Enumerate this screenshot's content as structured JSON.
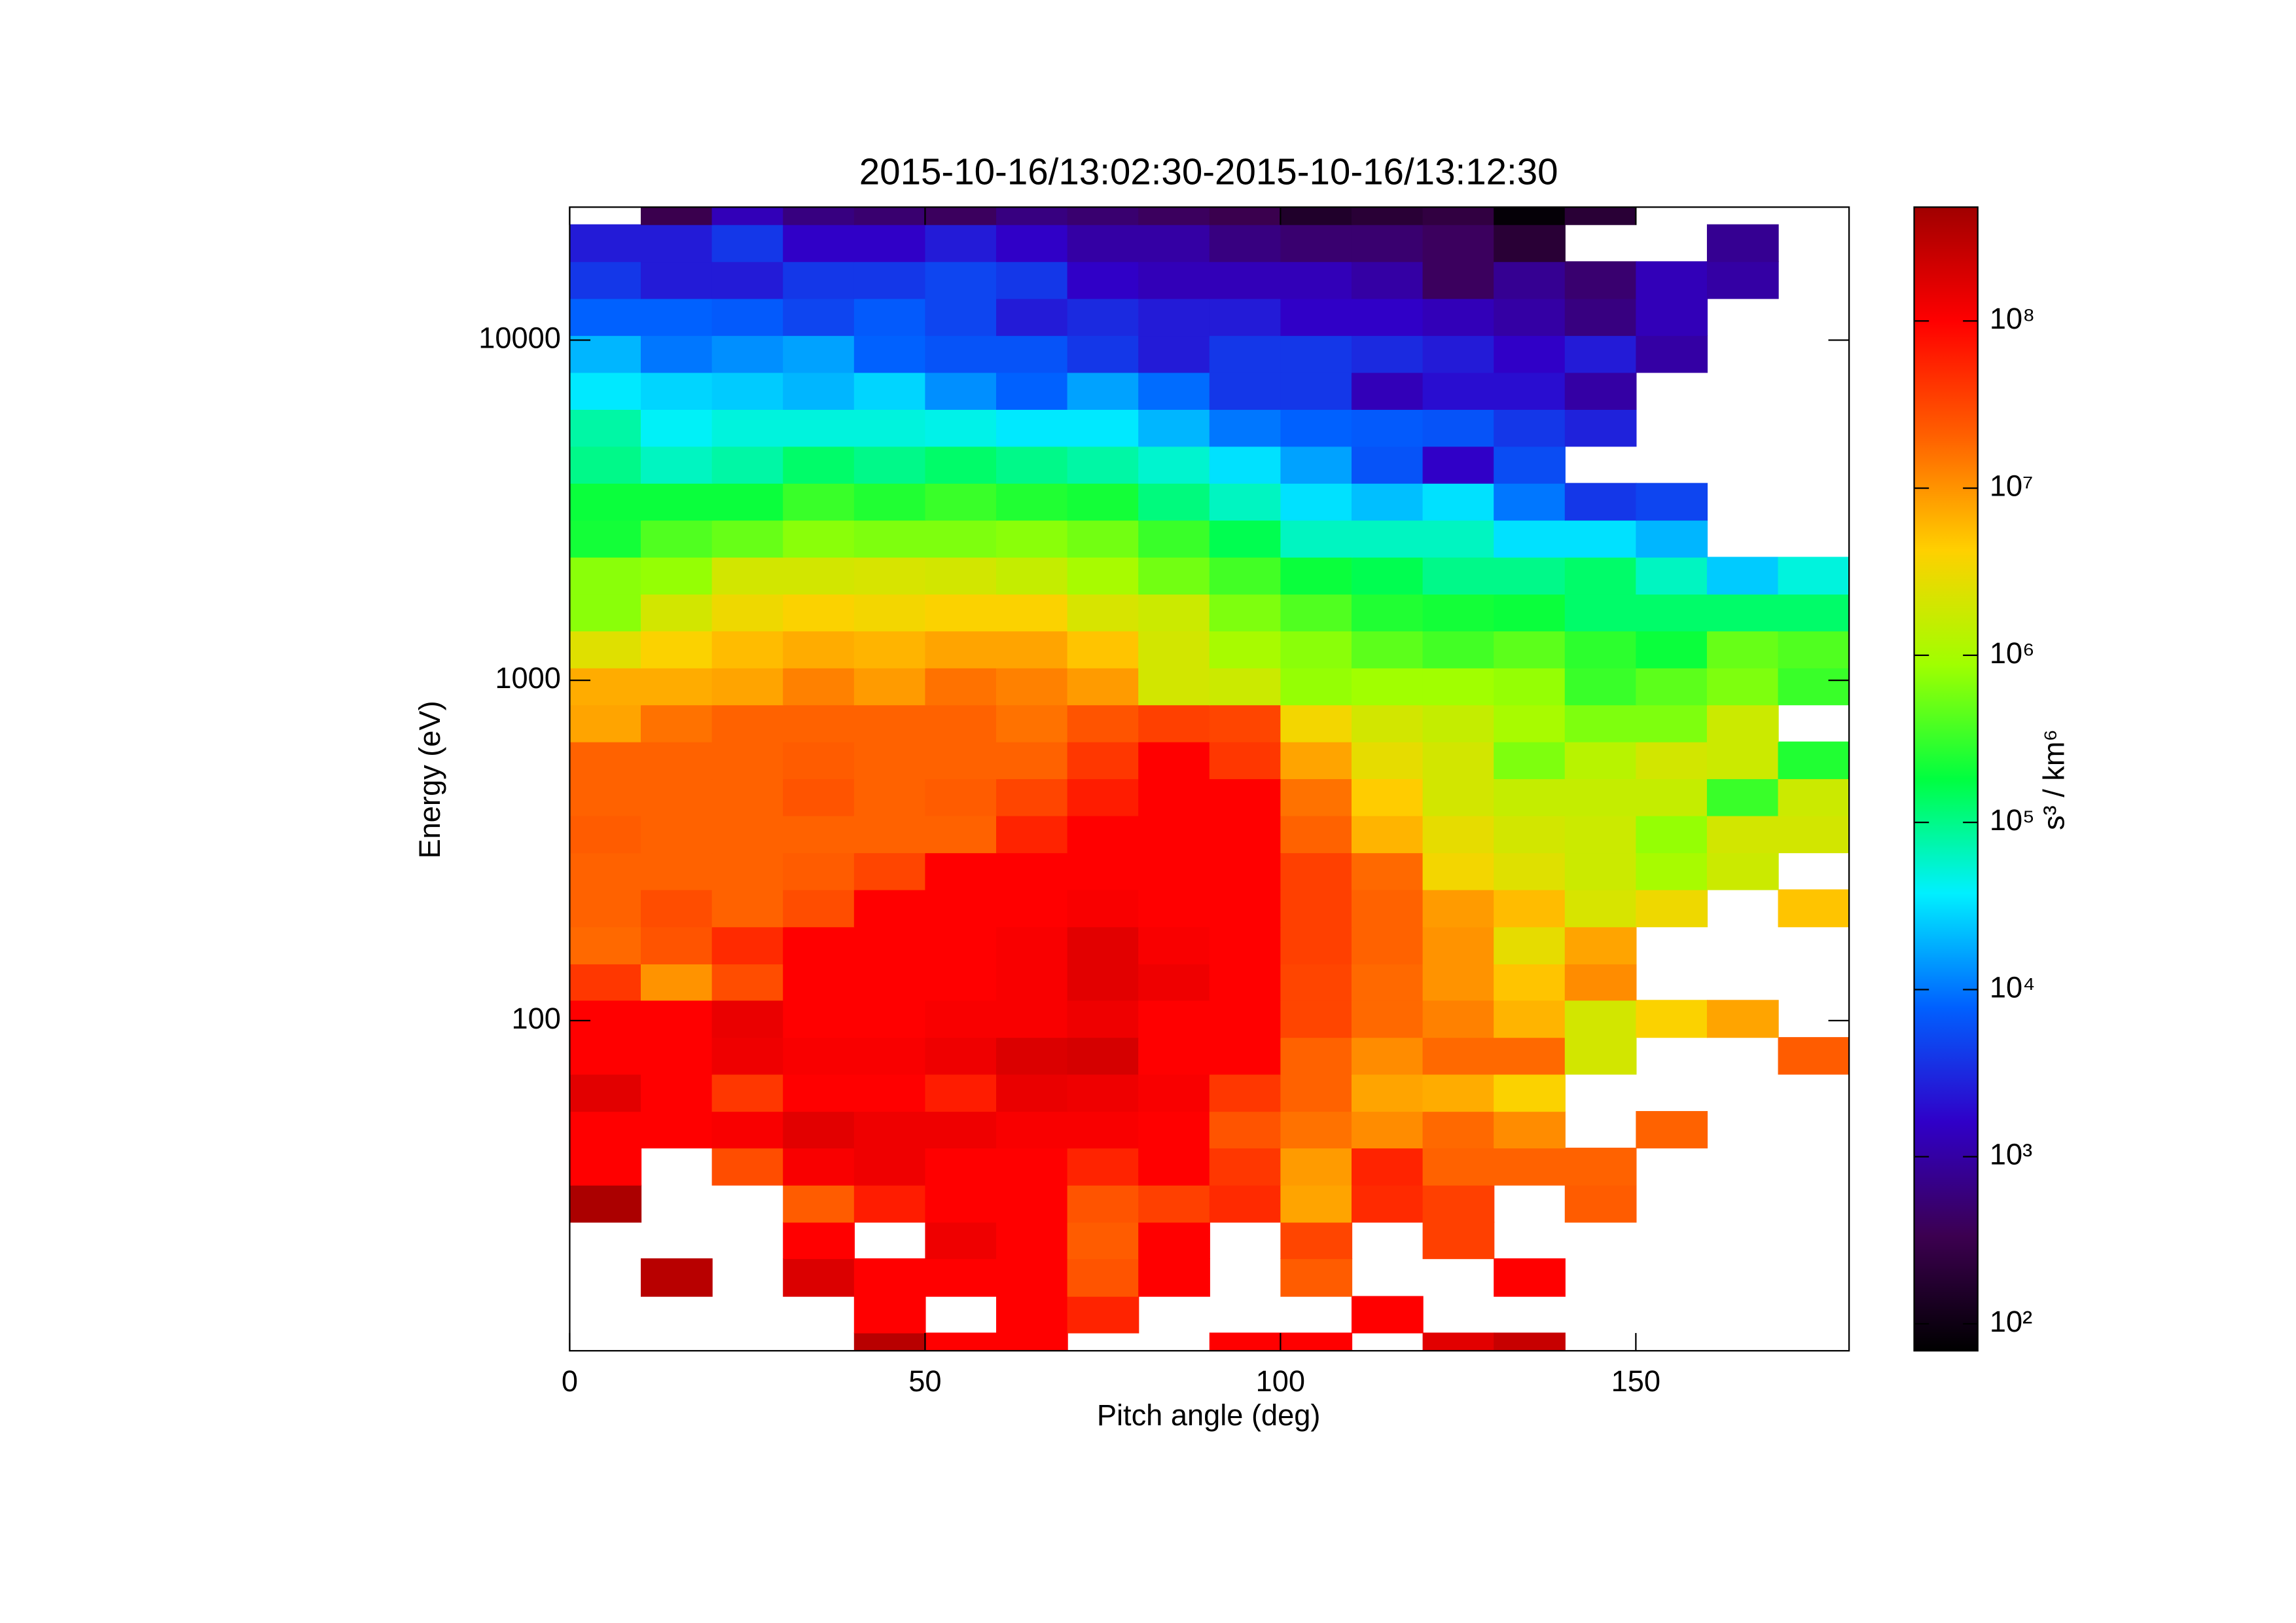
{
  "chart_data": {
    "type": "heatmap",
    "title": "2015-10-16/13:02:30-2015-10-16/13:12:30",
    "x_label": "Pitch angle (deg)",
    "y_label": "Energy (eV)",
    "colorbar_label": "s³ / km⁶",
    "x_bins": [
      0,
      10,
      20,
      30,
      40,
      50,
      60,
      70,
      80,
      90,
      100,
      110,
      120,
      130,
      140,
      150,
      160,
      170,
      180
    ],
    "y_bins": [
      9.4,
      12.1,
      15.5,
      20.0,
      25.6,
      32.9,
      42.3,
      54.2,
      69.7,
      89.4,
      115,
      147,
      189,
      243,
      312,
      401,
      515,
      661,
      849,
      1090,
      1400,
      1796,
      2307,
      2963,
      3804,
      4885,
      6271,
      8053,
      10340,
      13280,
      17050,
      21900,
      28120
    ],
    "xlim": [
      0,
      180
    ],
    "xticks": [
      0,
      50,
      100,
      150
    ],
    "ylim": [
      10.7,
      24600
    ],
    "yticks": [
      100,
      1000,
      10000
    ],
    "y_log": true,
    "zlim": [
      69,
      480000000
    ],
    "z_log": true,
    "zticks": [
      {
        "value": 100,
        "label": "10²"
      },
      {
        "value": 1000,
        "label": "10³"
      },
      {
        "value": 10000,
        "label": "10⁴"
      },
      {
        "value": 100000,
        "label": "10⁵"
      },
      {
        "value": 1000000,
        "label": "10⁶"
      },
      {
        "value": 10000000,
        "label": "10⁷"
      },
      {
        "value": 100000000,
        "label": "10⁸"
      }
    ],
    "colormap": [
      "#000000",
      "#3c0050",
      "#3000c8",
      "#0060ff",
      "#00f0ff",
      "#00ff40",
      "#a0ff00",
      "#ffd000",
      "#ff6000",
      "#ff0000",
      "#a00000"
    ],
    "z": [
      [
        null,
        null,
        null,
        null,
        320000000.0,
        100000000.0,
        100000000.0,
        null,
        null,
        100000000.0,
        100000000.0,
        null,
        160000000.0,
        250000000.0,
        null,
        null,
        null,
        null
      ],
      [
        null,
        null,
        null,
        null,
        100000000.0,
        null,
        100000000.0,
        56000000.0,
        null,
        null,
        null,
        100000000.0,
        null,
        null,
        null,
        null,
        null,
        null
      ],
      [
        null,
        320000000.0,
        null,
        180000000.0,
        100000000.0,
        100000000.0,
        100000000.0,
        25000000.0,
        100000000.0,
        null,
        22000000.0,
        null,
        null,
        100000000.0,
        null,
        null,
        null,
        null
      ],
      [
        null,
        null,
        null,
        100000000.0,
        null,
        130000000.0,
        100000000.0,
        22000000.0,
        100000000.0,
        null,
        32000000.0,
        null,
        35000000.0,
        null,
        null,
        null,
        null,
        null
      ],
      [
        400000000.0,
        null,
        null,
        22000000.0,
        63000000.0,
        100000000.0,
        100000000.0,
        25000000.0,
        35000000.0,
        50000000.0,
        7900000.0,
        50000000.0,
        35000000.0,
        null,
        22000000.0,
        null,
        null,
        null
      ],
      [
        100000000.0,
        null,
        28000000.0,
        110000000.0,
        130000000.0,
        100000000.0,
        100000000.0,
        56000000.0,
        100000000.0,
        40000000.0,
        8900000.0,
        56000000.0,
        20000000.0,
        20000000.0,
        20000000.0,
        null,
        null,
        null
      ],
      [
        100000000.0,
        100000000.0,
        110000000.0,
        160000000.0,
        130000000.0,
        130000000.0,
        110000000.0,
        110000000.0,
        100000000.0,
        25000000.0,
        16000000.0,
        11000000.0,
        18000000.0,
        11000000.0,
        null,
        20000000.0,
        null,
        null
      ],
      [
        160000000.0,
        100000000.0,
        40000000.0,
        100000000.0,
        100000000.0,
        63000000.0,
        140000000.0,
        130000000.0,
        110000000.0,
        40000000.0,
        20000000.0,
        7900000.0,
        7100000.0,
        4000000.0,
        null,
        null,
        null,
        null
      ],
      [
        100000000.0,
        100000000.0,
        130000000.0,
        110000000.0,
        110000000.0,
        130000000.0,
        180000000.0,
        200000000.0,
        100000000.0,
        100000000.0,
        20000000.0,
        11000000.0,
        18000000.0,
        18000000.0,
        2000000.0,
        null,
        null,
        22000000.0
      ],
      [
        100000000.0,
        100000000.0,
        140000000.0,
        100000000.0,
        100000000.0,
        110000000.0,
        110000000.0,
        130000000.0,
        100000000.0,
        100000000.0,
        32000000.0,
        18000000.0,
        13000000.0,
        6300000.0,
        2000000.0,
        4000000.0,
        7900000.0,
        null
      ],
      [
        40000000.0,
        10000000.0,
        28000000.0,
        100000000.0,
        100000000.0,
        100000000.0,
        110000000.0,
        160000000.0,
        130000000.0,
        100000000.0,
        32000000.0,
        18000000.0,
        10000000.0,
        5000000.0,
        11000000.0,
        null,
        null,
        null
      ],
      [
        18000000.0,
        25000000.0,
        50000000.0,
        100000000.0,
        100000000.0,
        100000000.0,
        110000000.0,
        160000000.0,
        110000000.0,
        100000000.0,
        35000000.0,
        20000000.0,
        10000000.0,
        2800000.0,
        7900000.0,
        null,
        null,
        null
      ],
      [
        20000000.0,
        28000000.0,
        20000000.0,
        28000000.0,
        100000000.0,
        100000000.0,
        100000000.0,
        110000000.0,
        100000000.0,
        100000000.0,
        35000000.0,
        20000000.0,
        8900000.0,
        5600000.0,
        2200000.0,
        3200000.0,
        null,
        5000000.0
      ],
      [
        20000000.0,
        20000000.0,
        20000000.0,
        22000000.0,
        32000000.0,
        100000000.0,
        100000000.0,
        100000000.0,
        100000000.0,
        100000000.0,
        35000000.0,
        18000000.0,
        3500000.0,
        2500000.0,
        1800000.0,
        1000000.0,
        1800000.0,
        null
      ],
      [
        22000000.0,
        20000000.0,
        20000000.0,
        20000000.0,
        20000000.0,
        20000000.0,
        56000000.0,
        100000000.0,
        100000000.0,
        100000000.0,
        20000000.0,
        6300000.0,
        2800000.0,
        2000000.0,
        1800000.0,
        790000.0,
        2000000.0,
        2000000.0
      ],
      [
        20000000.0,
        20000000.0,
        20000000.0,
        25000000.0,
        20000000.0,
        22000000.0,
        32000000.0,
        63000000.0,
        100000000.0,
        100000000.0,
        16000000.0,
        4500000.0,
        2000000.0,
        1600000.0,
        1600000.0,
        1600000.0,
        320000.0,
        1800000.0
      ],
      [
        20000000.0,
        20000000.0,
        20000000.0,
        22000000.0,
        20000000.0,
        20000000.0,
        20000000.0,
        40000000.0,
        100000000.0,
        40000000.0,
        7900000.0,
        2800000.0,
        2000000.0,
        630000.0,
        1300000.0,
        2000000.0,
        1800000.0,
        250000.0
      ],
      [
        7900000.0,
        16000000.0,
        20000000.0,
        20000000.0,
        20000000.0,
        20000000.0,
        16000000.0,
        25000000.0,
        35000000.0,
        32000000.0,
        3500000.0,
        2000000.0,
        1600000.0,
        1000000.0,
        630000.0,
        630000.0,
        1800000.0,
        null
      ],
      [
        7100000.0,
        7100000.0,
        7900000.0,
        13000000.0,
        8900000.0,
        16000000.0,
        13000000.0,
        8900000.0,
        2000000.0,
        1800000.0,
        790000.0,
        890000.0,
        890000.0,
        790000.0,
        320000.0,
        450000.0,
        630000.0,
        320000.0
      ],
      [
        2500000.0,
        4000000.0,
        5600000.0,
        7100000.0,
        6300000.0,
        7900000.0,
        7900000.0,
        5000000.0,
        2000000.0,
        1000000.0,
        710000.0,
        450000.0,
        350000.0,
        450000.0,
        280000.0,
        200000.0,
        500000.0,
        400000.0
      ],
      [
        710000.0,
        2000000.0,
        3200000.0,
        4000000.0,
        3500000.0,
        4000000.0,
        4000000.0,
        2200000.0,
        1800000.0,
        630000.0,
        400000.0,
        250000.0,
        220000.0,
        200000.0,
        130000.0,
        130000.0,
        130000.0,
        130000.0
      ],
      [
        710000.0,
        790000.0,
        2000000.0,
        2000000.0,
        2200000.0,
        2000000.0,
        1600000.0,
        1000000.0,
        560000.0,
        350000.0,
        200000.0,
        160000.0,
        100000.0,
        100000.0,
        130000.0,
        63000.0,
        25000.0,
        50000.0
      ],
      [
        220000.0,
        400000.0,
        500000.0,
        710000.0,
        630000.0,
        630000.0,
        710000.0,
        560000.0,
        320000.0,
        160000.0,
        63000.0,
        63000.0,
        63000.0,
        32000.0,
        32000.0,
        20000.0,
        null,
        null
      ],
      [
        200000.0,
        200000.0,
        200000.0,
        320000.0,
        250000.0,
        320000.0,
        250000.0,
        220000.0,
        110000.0,
        63000.0,
        32000.0,
        22000.0,
        32000.0,
        10000.0,
        4000.0,
        5000.0,
        null,
        null
      ],
      [
        100000.0,
        63000.0,
        79000.0,
        130000.0,
        100000.0,
        130000.0,
        100000.0,
        79000.0,
        56000.0,
        32000.0,
        16000.0,
        6300.0,
        1600.0,
        5600.0,
        null,
        null,
        null,
        null
      ],
      [
        79000.0,
        40000.0,
        50000.0,
        50000.0,
        50000.0,
        45000.0,
        35000.0,
        35000.0,
        20000.0,
        10000.0,
        7900.0,
        7100.0,
        6300.0,
        4000.0,
        2800.0,
        null,
        null,
        null
      ],
      [
        35000.0,
        28000.0,
        25000.0,
        20000.0,
        28000.0,
        13000.0,
        7900.0,
        16000.0,
        8900.0,
        4000.0,
        4000.0,
        1300.0,
        2000.0,
        2000.0,
        1000.0,
        null,
        null,
        null
      ],
      [
        20000.0,
        10000.0,
        13000.0,
        16000.0,
        7900.0,
        6300.0,
        6300.0,
        4000.0,
        2500.0,
        4000.0,
        4000.0,
        3200.0,
        2500.0,
        1600.0,
        2500.0,
        1000.0,
        null,
        null
      ],
      [
        7900.0,
        7900.0,
        7100.0,
        5000.0,
        7100.0,
        5000.0,
        2500.0,
        3200.0,
        2500.0,
        2500.0,
        1600.0,
        1600.0,
        1300.0,
        1000.0,
        630.0,
        1300.0,
        null,
        null
      ],
      [
        4000.0,
        2500.0,
        2500.0,
        4000.0,
        4000.0,
        5000.0,
        4000.0,
        1600.0,
        1300.0,
        1300.0,
        1300.0,
        1000.0,
        400.0,
        790.0,
        500.0,
        1300.0,
        1000.0,
        null
      ],
      [
        2500.0,
        2500.0,
        4000.0,
        1600.0,
        1600.0,
        2500.0,
        1600.0,
        1000.0,
        1000.0,
        630.0,
        500.0,
        500.0,
        400.0,
        200.0,
        null,
        null,
        790.0,
        null
      ],
      [
        null,
        320.0,
        1300.0,
        630.0,
        500.0,
        400.0,
        630.0,
        500.0,
        400.0,
        320.0,
        160.0,
        200.0,
        250.0,
        79.0,
        200.0,
        null,
        null,
        null
      ]
    ]
  }
}
